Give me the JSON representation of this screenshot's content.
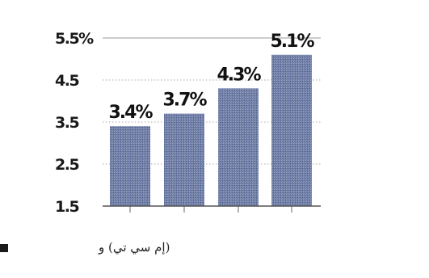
{
  "chart_data": {
    "type": "bar",
    "categories": [
      "",
      "",
      "",
      ""
    ],
    "values": [
      3.4,
      3.7,
      4.3,
      5.1
    ],
    "data_labels": [
      "3.4%",
      "3.7%",
      "4.3%",
      "5.1%"
    ],
    "title": "",
    "xlabel": "",
    "ylabel": "",
    "ylim": [
      1.5,
      5.5
    ],
    "y_ticks": [
      1.5,
      2.5,
      3.5,
      4.5,
      5.5
    ],
    "y_tick_labels": [
      "1.5",
      "2.5",
      "3.5",
      "4.5",
      "5.5%"
    ],
    "grid": true,
    "legend": "none",
    "bar_color": "#6f7fa8",
    "bar_pattern_color": "#9aa0b8",
    "grid_color": "#bbbbbb"
  },
  "source": {
    "text": "(إم سي تي) و"
  }
}
